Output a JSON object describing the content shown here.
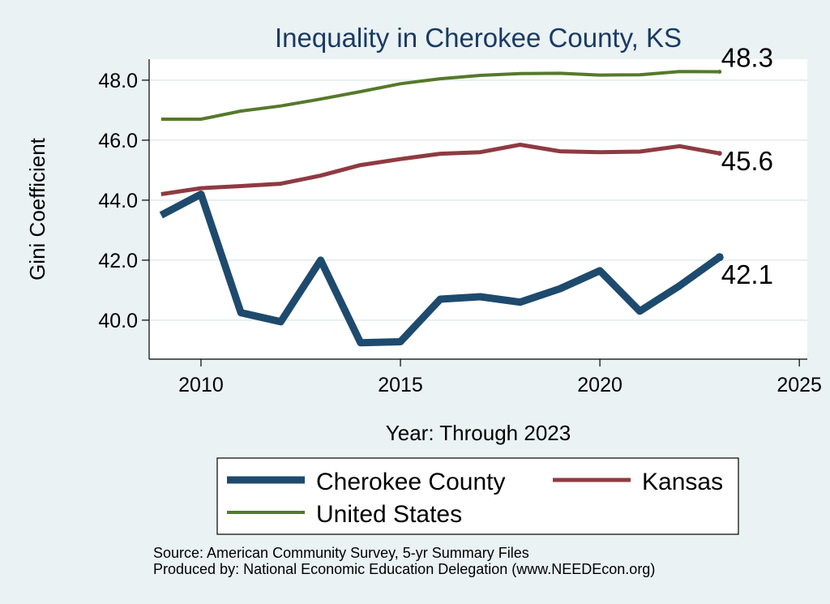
{
  "chart_data": {
    "type": "line",
    "title": "Inequality in Cherokee County, KS",
    "xlabel": "Year: Through 2023",
    "ylabel": "Gini Coefficient",
    "xlim": [
      2008.7,
      2025.2
    ],
    "ylim": [
      38.7,
      48.7
    ],
    "xticks": [
      2010,
      2015,
      2020,
      2025
    ],
    "yticks": [
      "40.0",
      "42.0",
      "44.0",
      "46.0",
      "48.0"
    ],
    "grid": true,
    "x": [
      2009,
      2010,
      2011,
      2012,
      2013,
      2014,
      2015,
      2016,
      2017,
      2018,
      2019,
      2020,
      2021,
      2022,
      2023
    ],
    "series": [
      {
        "name": "Cherokee County",
        "color": "#1e4a6e",
        "values": [
          43.5,
          44.2,
          40.25,
          39.95,
          42.0,
          39.25,
          39.28,
          40.7,
          40.78,
          40.6,
          41.05,
          41.65,
          40.3,
          41.15,
          42.1
        ],
        "end_label": "42.1"
      },
      {
        "name": "Kansas",
        "color": "#8f3a42",
        "values": [
          44.2,
          44.4,
          44.47,
          44.55,
          44.82,
          45.17,
          45.37,
          45.55,
          45.6,
          45.85,
          45.63,
          45.6,
          45.62,
          45.8,
          45.56
        ],
        "end_label": "45.6"
      },
      {
        "name": "United States",
        "color": "#55792a",
        "values": [
          46.7,
          46.7,
          46.97,
          47.14,
          47.37,
          47.62,
          47.88,
          48.05,
          48.16,
          48.22,
          48.23,
          48.17,
          48.18,
          48.29,
          48.28
        ],
        "end_label": "48.3"
      }
    ],
    "legend": {
      "placement": "bottom",
      "entries": [
        "Cherokee County",
        "Kansas",
        "United States"
      ]
    },
    "notes": [
      "Source: American Community Survey, 5-yr Summary Files",
      "Produced by: National Economic Education Delegation (www.NEEDEcon.org)"
    ]
  }
}
